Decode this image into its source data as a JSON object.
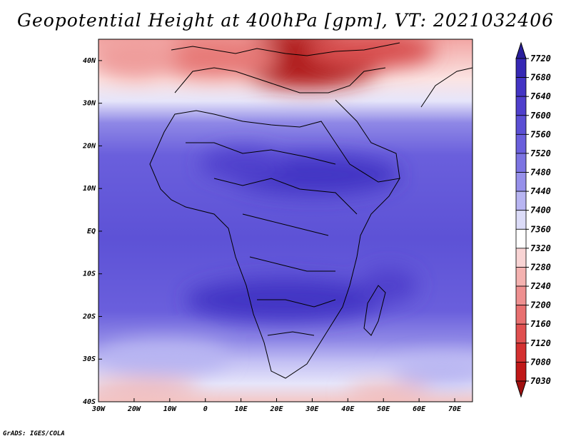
{
  "title": "Geopotential Height at 400hPa [gpm], VT: 2021032406",
  "credit": "GrADS: IGES/COLA",
  "map": {
    "lon_range": [
      -30,
      75
    ],
    "lat_range": [
      -40,
      45
    ],
    "lon_ticks": [
      "30W",
      "20W",
      "10W",
      "0",
      "10E",
      "20E",
      "30E",
      "40E",
      "50E",
      "60E",
      "70E"
    ],
    "lat_ticks": [
      "40N",
      "30N",
      "20N",
      "10N",
      "EQ",
      "10S",
      "20S",
      "30S",
      "40S"
    ],
    "lon_tick_values": [
      -30,
      -20,
      -10,
      0,
      10,
      20,
      30,
      40,
      50,
      60,
      70
    ],
    "lat_tick_values": [
      40,
      30,
      20,
      10,
      0,
      -10,
      -20,
      -30,
      -40
    ]
  },
  "colorbar": {
    "levels": [
      "7720",
      "7680",
      "7640",
      "7600",
      "7560",
      "7520",
      "7480",
      "7440",
      "7400",
      "7360",
      "7320",
      "7280",
      "7240",
      "7200",
      "7160",
      "7120",
      "7080",
      "7030"
    ],
    "colors": [
      "#2a1f9c",
      "#3628b4",
      "#4334c4",
      "#4f3fcc",
      "#5b4fd4",
      "#6a5fdc",
      "#7c74e2",
      "#9690ea",
      "#b8b5f2",
      "#dcdcf8",
      "#ffffff",
      "#f8d4d4",
      "#f4b2b0",
      "#ee9090",
      "#e87070",
      "#e05050",
      "#d43030",
      "#c01818",
      "#a01010"
    ]
  }
}
